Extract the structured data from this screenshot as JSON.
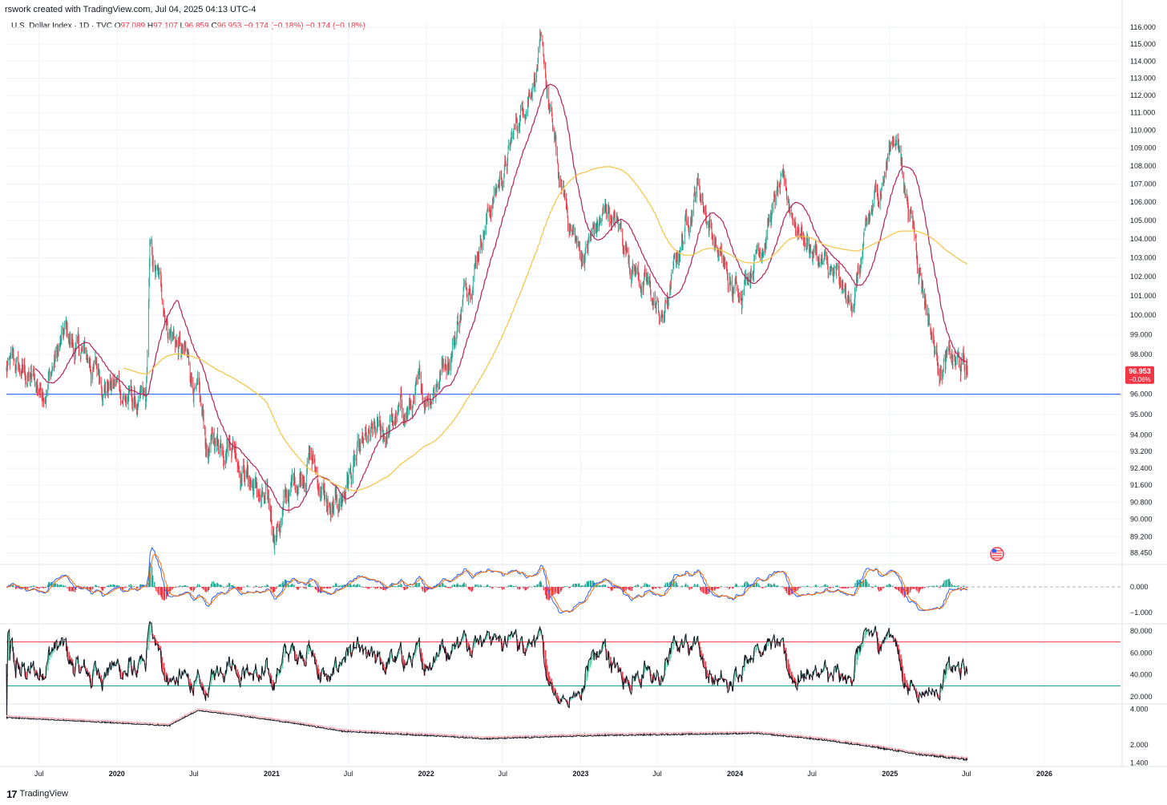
{
  "header": {
    "text": "rswork created with TradingView.com, Jul 04, 2025 04:13 UTC-4"
  },
  "legend": {
    "symbol": "U.S. Dollar Index · 1D · TVC",
    "o_label": "O",
    "o_value": "97.089",
    "h_label": "H",
    "h_value": "97.107",
    "l_label": "L",
    "l_value": "96.859",
    "c_label": "C",
    "c_value": "96.953",
    "change": "−0.174 (−0.18%)",
    "change2": "−0.174 (−0.18%)"
  },
  "price_badge": {
    "price": "96.953",
    "change_pct": "−0.06%",
    "color": "#f23645"
  },
  "footer": {
    "brand": "TradingView",
    "logo_icon": "tradingview-logo-icon"
  },
  "colors": {
    "up": "#22ab94",
    "down": "#f23645",
    "ma_fast": "#b2225a",
    "ma_slow": "#f6c343",
    "hline": "#2962ff",
    "macd": "#2962ff",
    "signal": "#ff6d00",
    "rsi_upper": "#f23645",
    "rsi_lower": "#089981"
  },
  "chart_data": [
    {
      "type": "candlestick",
      "title": "U.S. Dollar Index · 1D · TVC",
      "y_scale": "log",
      "y_range": [
        88.0,
        116.3
      ],
      "y_ticks": [
        "116.000",
        "115.000",
        "114.000",
        "113.000",
        "112.000",
        "111.000",
        "110.000",
        "109.000",
        "108.000",
        "107.000",
        "106.000",
        "105.000",
        "104.000",
        "103.000",
        "102.000",
        "101.000",
        "100.000",
        "99.000",
        "98.000",
        "96.000",
        "95.000",
        "94.000",
        "93.200",
        "92.400",
        "91.600",
        "90.800",
        "90.000",
        "89.200",
        "88.450"
      ],
      "x_ticks": [
        "Jul",
        "2020",
        "Jul",
        "2021",
        "Jul",
        "2022",
        "Jul",
        "2023",
        "Jul",
        "2024",
        "Jul",
        "2025",
        "Jul",
        "2026"
      ],
      "x_range": [
        "2019-04-15",
        "2026-06-30"
      ],
      "horizontal_line": 96.0,
      "key_points": [
        {
          "date": "2019-04-15",
          "value": 97.2
        },
        {
          "date": "2019-06-01",
          "value": 96.8
        },
        {
          "date": "2019-07-01",
          "value": 96.2
        },
        {
          "date": "2019-09-01",
          "value": 98.8
        },
        {
          "date": "2019-10-01",
          "value": 98.0
        },
        {
          "date": "2019-12-31",
          "value": 96.4
        },
        {
          "date": "2020-03-10",
          "value": 95.0
        },
        {
          "date": "2020-03-19",
          "value": 102.9
        },
        {
          "date": "2020-05-01",
          "value": 99.8
        },
        {
          "date": "2020-07-01",
          "value": 96.5
        },
        {
          "date": "2020-08-01",
          "value": 93.0
        },
        {
          "date": "2020-09-25",
          "value": 94.5
        },
        {
          "date": "2020-11-01",
          "value": 92.5
        },
        {
          "date": "2021-01-06",
          "value": 89.4
        },
        {
          "date": "2021-03-31",
          "value": 93.3
        },
        {
          "date": "2021-05-25",
          "value": 89.7
        },
        {
          "date": "2021-07-01",
          "value": 92.0
        },
        {
          "date": "2021-10-01",
          "value": 94.2
        },
        {
          "date": "2022-01-01",
          "value": 96.0
        },
        {
          "date": "2022-03-01",
          "value": 98.5
        },
        {
          "date": "2022-05-13",
          "value": 104.8
        },
        {
          "date": "2022-07-14",
          "value": 108.5
        },
        {
          "date": "2022-09-27",
          "value": 114.8
        },
        {
          "date": "2022-11-15",
          "value": 106.5
        },
        {
          "date": "2023-01-01",
          "value": 103.0
        },
        {
          "date": "2023-03-08",
          "value": 105.6
        },
        {
          "date": "2023-07-14",
          "value": 99.6
        },
        {
          "date": "2023-10-03",
          "value": 107.3
        },
        {
          "date": "2023-12-27",
          "value": 100.8
        },
        {
          "date": "2024-04-16",
          "value": 106.5
        },
        {
          "date": "2024-09-27",
          "value": 100.2
        },
        {
          "date": "2025-01-13",
          "value": 110.1
        },
        {
          "date": "2025-04-21",
          "value": 98.0
        },
        {
          "date": "2025-07-03",
          "value": 96.953
        }
      ],
      "moving_averages": [
        {
          "name": "",
          "color": "#b2225a"
        },
        {
          "name": "",
          "color": "#f6c343"
        }
      ]
    },
    {
      "type": "line",
      "panel": "oscillator",
      "y_ticks": [
        "0.000",
        "−1.000"
      ],
      "zero_line": 0.0
    },
    {
      "type": "line",
      "panel": "rsi",
      "y_ticks": [
        "80.000",
        "60.000",
        "40.000",
        "20.000"
      ],
      "bands": [
        70,
        30
      ]
    },
    {
      "type": "line",
      "panel": "ratio",
      "y_scale": "log",
      "y_ticks": [
        "4.000",
        "2.000",
        "1.400"
      ]
    }
  ]
}
